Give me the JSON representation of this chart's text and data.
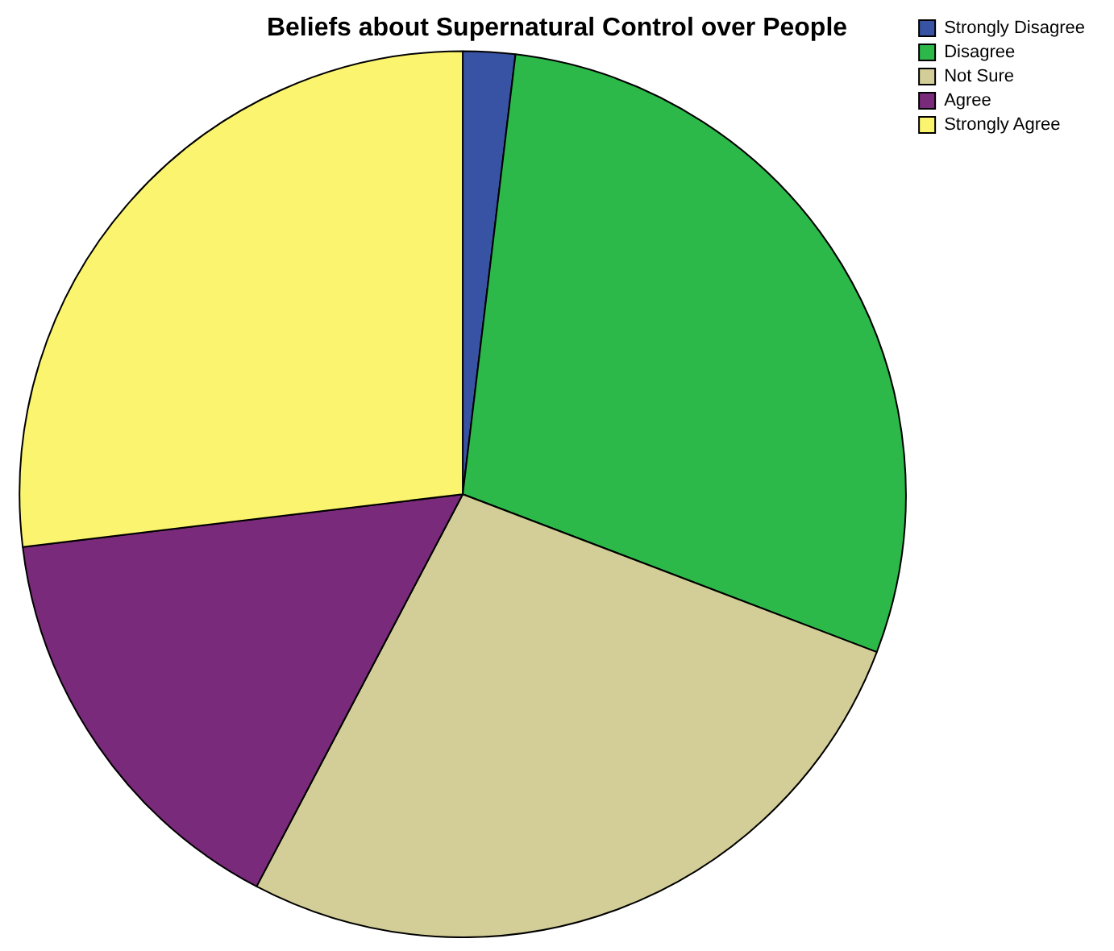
{
  "chart_data": {
    "type": "pie",
    "title": "Beliefs about Supernatural Control over People",
    "categories": [
      "Strongly Disagree",
      "Disagree",
      "Not Sure",
      "Agree",
      "Strongly Agree"
    ],
    "values": [
      1.9,
      28.9,
      26.9,
      15.4,
      26.9
    ],
    "colors": [
      "#3953a4",
      "#2db84a",
      "#d3ce97",
      "#7a2a7a",
      "#fbf46f"
    ],
    "legend": "top right"
  }
}
